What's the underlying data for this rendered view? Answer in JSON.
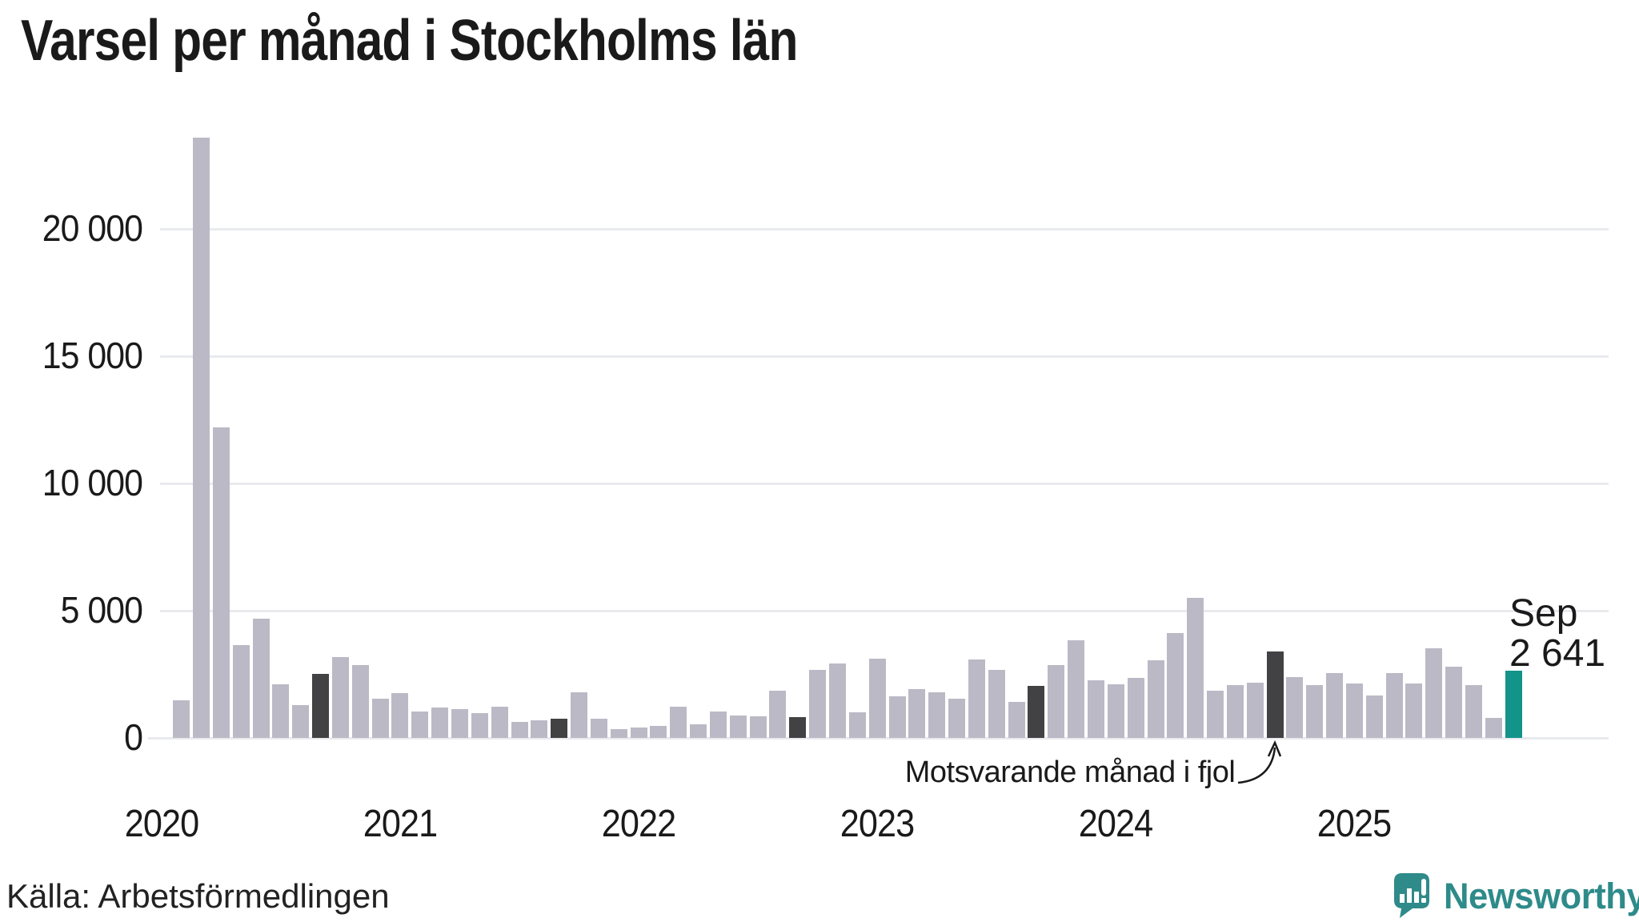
{
  "title": "Varsel per månad i Stockholms län",
  "footer": {
    "source": "Källa: Arbetsförmedlingen",
    "brand": "Newsworthy"
  },
  "annotation": {
    "text": "Motsvarande månad i fjol"
  },
  "current_point_label": {
    "month": "Sep",
    "value": "2 641"
  },
  "colors": {
    "bar_normal": "#BCB9C6",
    "bar_september": "#424244",
    "bar_current": "#129489",
    "grid": "#E9EAEE",
    "axis_text": "#1A1A1A",
    "title_text": "#1A1A1A",
    "source_text": "#222222",
    "brand_teal": "#2E8B8A"
  },
  "chart_data": {
    "type": "bar",
    "title": "Varsel per månad i Stockholms län",
    "xlabel": "",
    "ylabel": "",
    "ylim": [
      0,
      24500
    ],
    "grid": true,
    "legend_position": "none",
    "y_ticks": [
      {
        "value": 0,
        "label": "0"
      },
      {
        "value": 5000,
        "label": "5 000"
      },
      {
        "value": 10000,
        "label": "10 000"
      },
      {
        "value": 15000,
        "label": "15 000"
      },
      {
        "value": 20000,
        "label": "20 000"
      }
    ],
    "x_ticks": [
      {
        "label": "2020",
        "slot": 0
      },
      {
        "label": "2021",
        "slot": 12
      },
      {
        "label": "2022",
        "slot": 24
      },
      {
        "label": "2023",
        "slot": 36
      },
      {
        "label": "2024",
        "slot": 48
      },
      {
        "label": "2025",
        "slot": 60
      }
    ],
    "months": [
      "2020-01",
      "2020-02",
      "2020-03",
      "2020-04",
      "2020-05",
      "2020-06",
      "2020-07",
      "2020-08",
      "2020-09",
      "2020-10",
      "2020-11",
      "2020-12",
      "2021-01",
      "2021-02",
      "2021-03",
      "2021-04",
      "2021-05",
      "2021-06",
      "2021-07",
      "2021-08",
      "2021-09",
      "2021-10",
      "2021-11",
      "2021-12",
      "2022-01",
      "2022-02",
      "2022-03",
      "2022-04",
      "2022-05",
      "2022-06",
      "2022-07",
      "2022-08",
      "2022-09",
      "2022-10",
      "2022-11",
      "2022-12",
      "2023-01",
      "2023-02",
      "2023-03",
      "2023-04",
      "2023-05",
      "2023-06",
      "2023-07",
      "2023-08",
      "2023-09",
      "2023-10",
      "2023-11",
      "2023-12",
      "2024-01",
      "2024-02",
      "2024-03",
      "2024-04",
      "2024-05",
      "2024-06",
      "2024-07",
      "2024-08",
      "2024-09",
      "2024-10",
      "2024-11",
      "2024-12",
      "2025-01",
      "2025-02",
      "2025-03",
      "2025-04",
      "2025-05",
      "2025-06",
      "2025-07",
      "2025-08",
      "2025-09"
    ],
    "values": [
      null,
      1480,
      23600,
      12200,
      3650,
      4690,
      2120,
      1290,
      2520,
      3180,
      2860,
      1540,
      1760,
      1040,
      1200,
      1130,
      980,
      1230,
      640,
      690,
      740,
      1780,
      760,
      355,
      400,
      480,
      1240,
      535,
      1030,
      880,
      850,
      1865,
      820,
      2660,
      2930,
      1010,
      3100,
      1630,
      1910,
      1790,
      1540,
      3070,
      2670,
      1430,
      2040,
      2860,
      3840,
      2270,
      2120,
      2370,
      3060,
      4110,
      5510,
      1850,
      2070,
      2160,
      3390,
      2390,
      2090,
      2560,
      2140,
      1670,
      2550,
      2130,
      3520,
      2790,
      2080,
      795,
      2641
    ],
    "september_indexes": [
      8,
      20,
      32,
      44,
      56
    ],
    "current_index": 68
  }
}
